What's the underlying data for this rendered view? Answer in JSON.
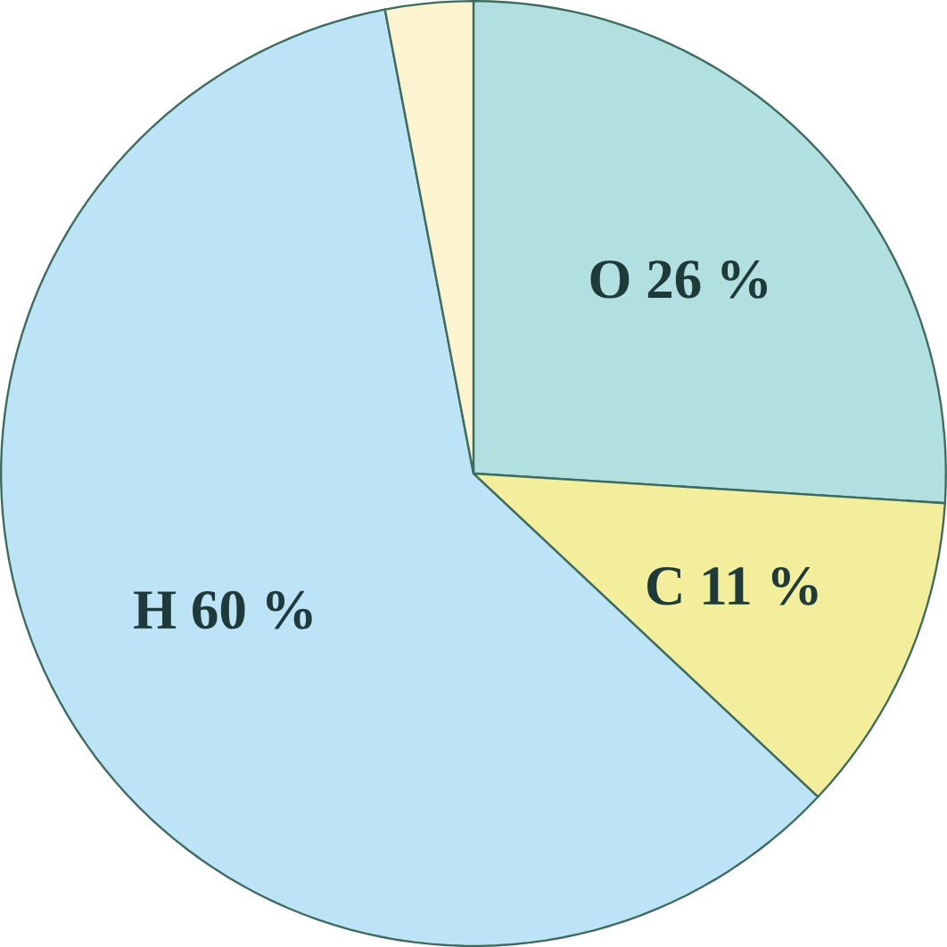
{
  "chart_data": {
    "type": "pie",
    "categories": [
      "O",
      "C",
      "H",
      null
    ],
    "values": [
      26,
      11,
      60,
      3
    ],
    "value_labels": [
      "26 %",
      "11 %",
      "60 %",
      null
    ],
    "colors": [
      "#b2e0e0",
      "#f2ee9c",
      "#bde3f6",
      "#fbf4cf"
    ]
  }
}
